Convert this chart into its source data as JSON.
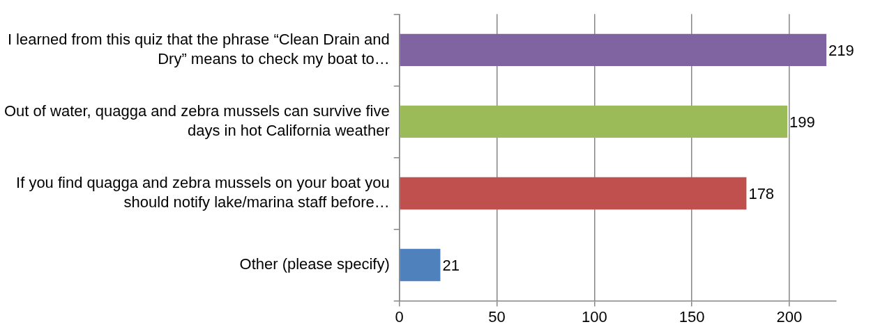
{
  "chart_data": {
    "type": "bar",
    "orientation": "horizontal",
    "categories": [
      "I learned from this quiz that the phrase “Clean Drain and Dry” means to check my boat to…",
      "Out of water, quagga and zebra mussels can survive five days in hot California weather",
      "If you find quagga and zebra mussels on your boat you should notify lake/marina staff before…",
      "Other (please specify)"
    ],
    "values": [
      219,
      199,
      178,
      21
    ],
    "colors": [
      "#8064a2",
      "#9bbb59",
      "#c0504d",
      "#4f81bd"
    ],
    "xlim": [
      0,
      224
    ],
    "xticks": [
      0,
      50,
      100,
      150,
      200
    ],
    "grid": "x",
    "data_labels": true,
    "legend": false
  }
}
